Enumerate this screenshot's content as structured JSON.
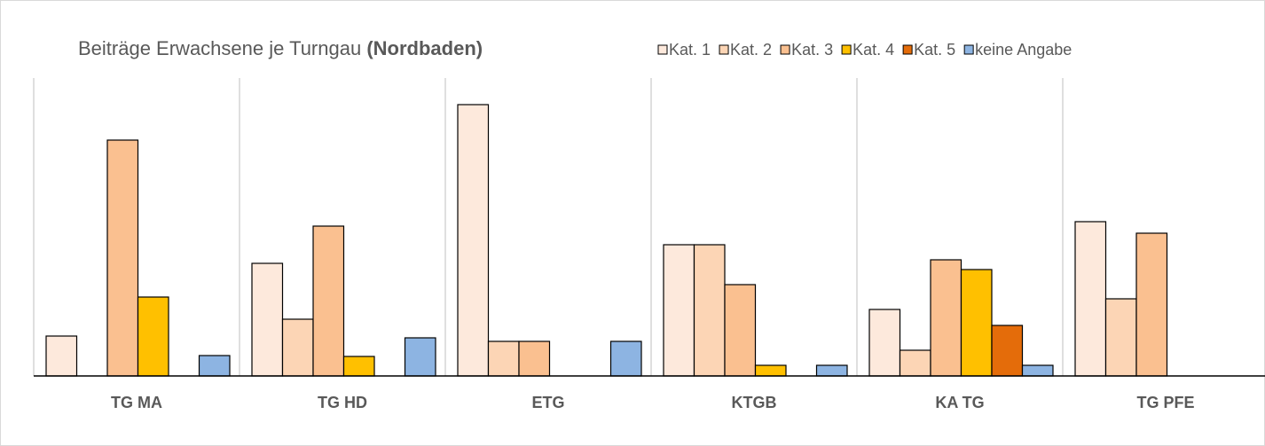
{
  "chart_data": {
    "type": "bar",
    "title": "Beiträge Erwachsene je Turngau",
    "title_emphasis": "(Nordbaden)",
    "categories": [
      "TG MA",
      "TG HD",
      "ETG",
      "KTGB",
      "KA TG",
      "TG PFE"
    ],
    "series": [
      {
        "name": "Kat. 1",
        "color": "#fde9dc",
        "values": [
          45,
          127,
          306,
          148,
          75,
          174
        ]
      },
      {
        "name": "Kat. 2",
        "color": "#fcd5b5",
        "values": [
          0,
          64,
          39,
          148,
          29,
          87
        ]
      },
      {
        "name": "Kat. 3",
        "color": "#fac090",
        "values": [
          266,
          169,
          39,
          103,
          131,
          161
        ]
      },
      {
        "name": "Kat. 4",
        "color": "#ffc000",
        "values": [
          89,
          22,
          0,
          12,
          120,
          0
        ]
      },
      {
        "name": "Kat. 5",
        "color": "#e46c0a",
        "values": [
          0,
          0,
          0,
          0,
          57,
          0
        ]
      },
      {
        "name": "keine Angabe",
        "color": "#8db4e2",
        "values": [
          23,
          43,
          39,
          12,
          12,
          0
        ]
      }
    ],
    "ylim": [
      0,
      336
    ],
    "category_grid": true
  }
}
